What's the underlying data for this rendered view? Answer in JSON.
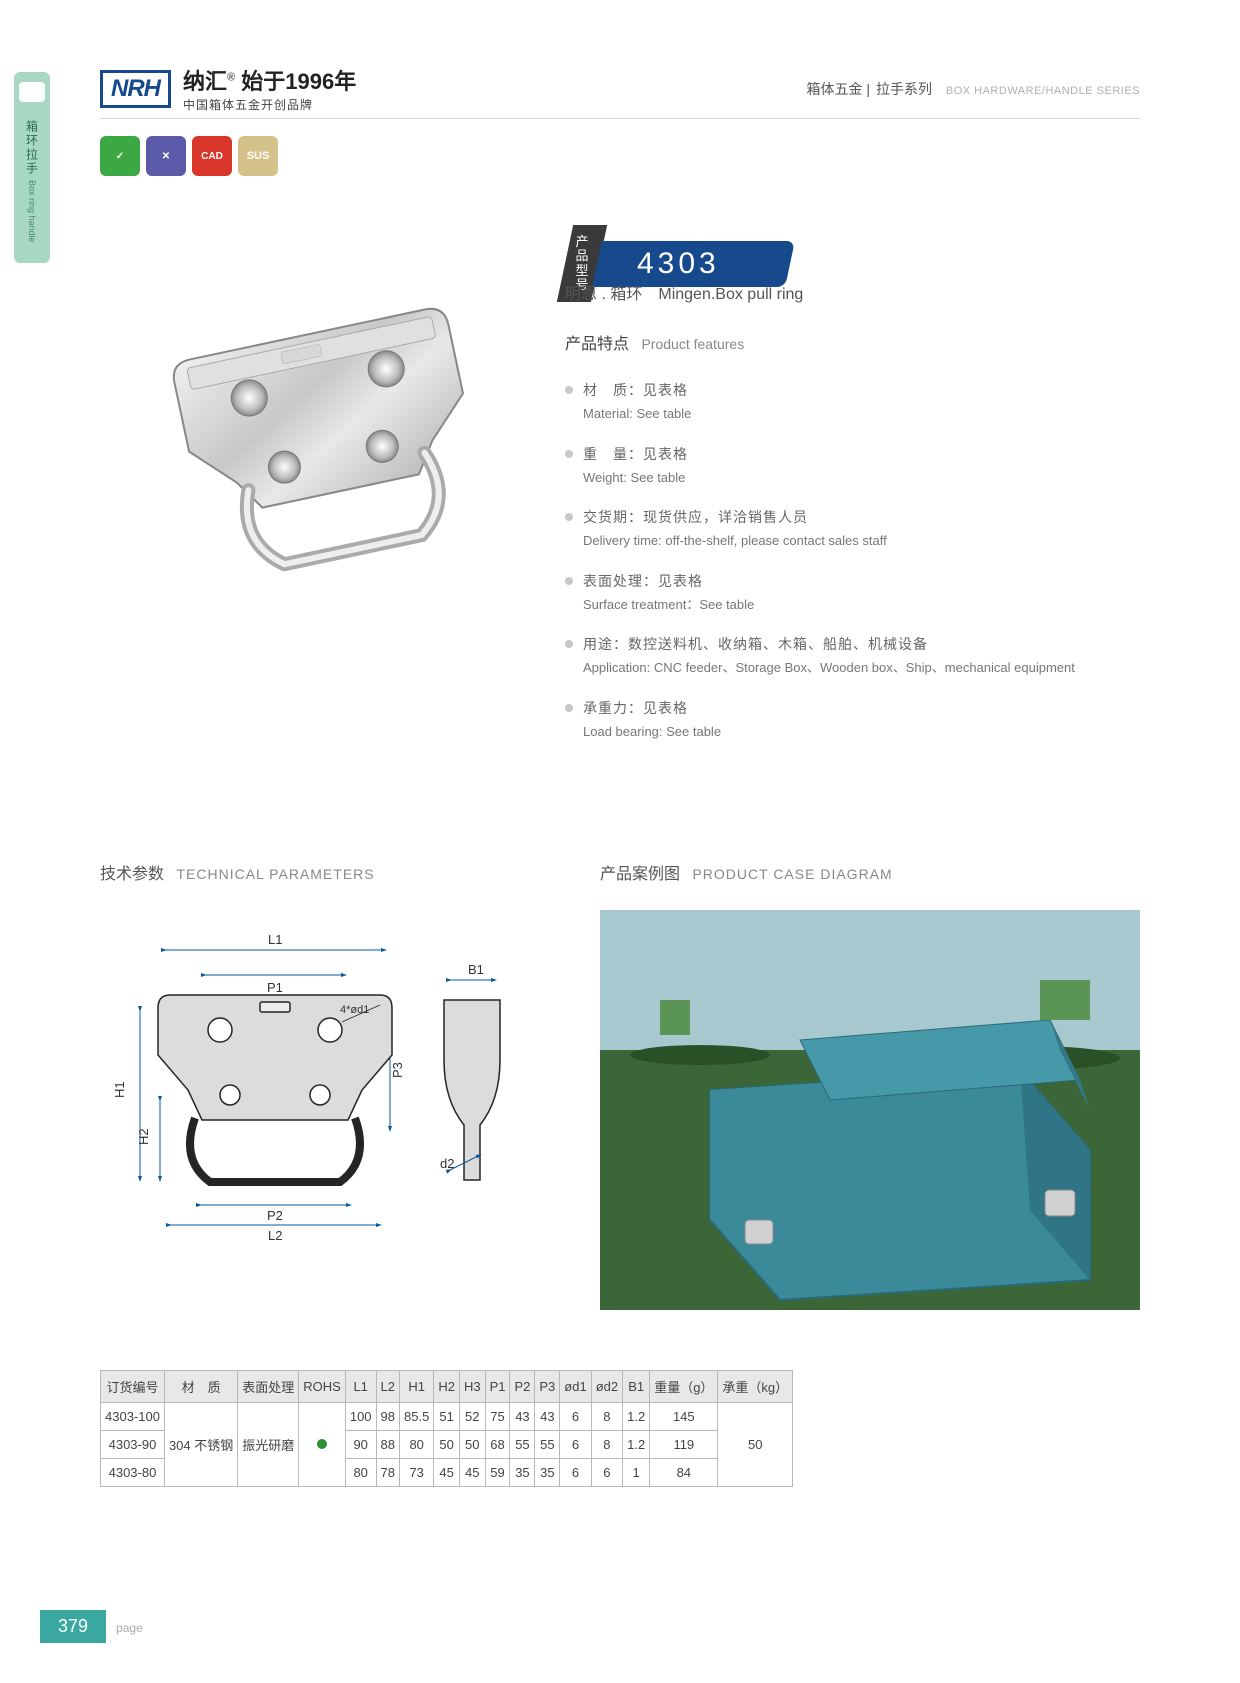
{
  "side_tab": {
    "cn": "箱环拉手",
    "en": "Box ring handle"
  },
  "header": {
    "logo_text": "NRH",
    "brand_cn": "纳汇",
    "brand_reg": "®",
    "brand_year": "始于1996年",
    "brand_sub": "中国箱体五金开创品牌",
    "right_cn1": "箱体五金",
    "right_sep": " | ",
    "right_cn2": "拉手系列",
    "right_en": "BOX HARDWARE/HANDLE SERIES"
  },
  "badges": {
    "green": "✓",
    "blue": "✕",
    "red": "CAD",
    "tan": "SUS"
  },
  "model": {
    "label": "产品型号",
    "number": "4303",
    "sub_cn": "明恩 . 箱环",
    "sub_en": "Mingen.Box pull ring"
  },
  "features": {
    "title_cn": "产品特点",
    "title_en": "Product features",
    "items": [
      {
        "cn": "材　质：见表格",
        "en": "Material: See table"
      },
      {
        "cn": "重　量：见表格",
        "en": "Weight: See table"
      },
      {
        "cn": "交货期：现货供应，详洽销售人员",
        "en": "Delivery time: off-the-shelf, please contact sales staff"
      },
      {
        "cn": "表面处理：见表格",
        "en": "Surface treatment：See table"
      },
      {
        "cn": "用途：数控送料机、收纳箱、木箱、船舶、机械设备",
        "en": "Application: CNC feeder、Storage Box、Wooden box、Ship、mechanical equipment"
      },
      {
        "cn": "承重力：见表格",
        "en": "Load bearing: See table"
      }
    ]
  },
  "sections": {
    "tech_cn": "技术参数",
    "tech_en": "TECHNICAL PARAMETERS",
    "case_cn": "产品案例图",
    "case_en": "PRODUCT CASE DIAGRAM"
  },
  "tech_drawing": {
    "labels": [
      "L1",
      "P1",
      "4*ød1",
      "B1",
      "H1",
      "H2",
      "P3",
      "d2",
      "P2",
      "L2"
    ],
    "stroke": "#252525",
    "fill": "#dcdcdc",
    "dim_color": "#0a5aa0"
  },
  "case_photo": {
    "grass": "#3a6638",
    "sky": "#a8c8d0",
    "box": "#3a8a9a",
    "handle": "#d0d0d0"
  },
  "table": {
    "headers": [
      "订货编号",
      "材　质",
      "表面处理",
      "ROHS",
      "L1",
      "L2",
      "H1",
      "H2",
      "H3",
      "P1",
      "P2",
      "P3",
      "ød1",
      "ød2",
      "B1",
      "重量（g）",
      "承重（kg）"
    ],
    "rows": [
      [
        "4303-100",
        "",
        "",
        "",
        "100",
        "98",
        "85.5",
        "51",
        "52",
        "75",
        "43",
        "43",
        "6",
        "8",
        "1.2",
        "145",
        ""
      ],
      [
        "4303-90",
        "304 不锈钢",
        "振光研磨",
        "●",
        "90",
        "88",
        "80",
        "50",
        "50",
        "68",
        "55",
        "55",
        "6",
        "8",
        "1.2",
        "119",
        "50"
      ],
      [
        "4303-80",
        "",
        "",
        "",
        "80",
        "78",
        "73",
        "45",
        "45",
        "59",
        "35",
        "35",
        "6",
        "6",
        "1",
        "84",
        ""
      ]
    ],
    "material_rowspan": 3,
    "header_bg": "#e8e8e8",
    "border": "#b8b8b8"
  },
  "footer": {
    "page": "379",
    "label": "page"
  }
}
